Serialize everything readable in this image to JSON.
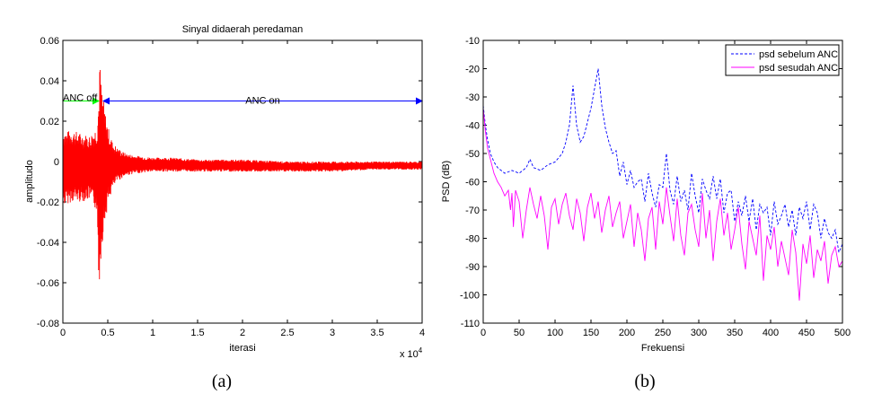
{
  "chart_data": [
    {
      "type": "line",
      "title": "Sinyal didaerah peredaman",
      "xlabel": "iterasi",
      "ylabel": "amplitudo",
      "x_multiplier": "x 10",
      "x_multiplier_exp": "4",
      "xlim": [
        0,
        4
      ],
      "ylim": [
        -0.08,
        0.06
      ],
      "xticks": [
        "0",
        "0.5",
        "1",
        "1.5",
        "2",
        "2.5",
        "3",
        "3.5",
        "4"
      ],
      "yticks": [
        "-0.08",
        "-0.06",
        "-0.04",
        "-0.02",
        "0",
        "0.02",
        "0.04",
        "0.06"
      ],
      "series_color": "#ff0000",
      "envelope": {
        "x": [
          0,
          0.05,
          0.1,
          0.2,
          0.3,
          0.38,
          0.4,
          0.41,
          0.42,
          0.44,
          0.47,
          0.5,
          0.55,
          0.6,
          0.7,
          0.8,
          1.0,
          1.2,
          1.5,
          2.0,
          2.5,
          3.0,
          3.5,
          4.0
        ],
        "upper": [
          0.016,
          0.015,
          0.016,
          0.014,
          0.013,
          0.018,
          0.035,
          0.053,
          0.042,
          0.035,
          0.025,
          0.018,
          0.01,
          0.007,
          0.004,
          0.003,
          0.002,
          0.002,
          0.001,
          0.001,
          0.0,
          0.0,
          0.0,
          0.0
        ],
        "lower": [
          -0.022,
          -0.021,
          -0.02,
          -0.02,
          -0.019,
          -0.025,
          -0.06,
          -0.061,
          -0.05,
          -0.04,
          -0.03,
          -0.022,
          -0.014,
          -0.01,
          -0.007,
          -0.006,
          -0.005,
          -0.005,
          -0.005,
          -0.005,
          -0.005,
          -0.005,
          -0.004,
          -0.004
        ]
      },
      "annotations": [
        {
          "text": "ANC off",
          "from_x": 0.0,
          "to_x": 0.4,
          "y": 0.03,
          "color": "#00ff00"
        },
        {
          "text": "ANC on",
          "from_x": 0.45,
          "to_x": 4.0,
          "y": 0.03,
          "color": "#0000ff"
        }
      ],
      "caption": "(a)"
    },
    {
      "type": "line",
      "xlabel": "Frekuensi",
      "ylabel": "PSD (dB)",
      "xlim": [
        0,
        500
      ],
      "ylim": [
        -110,
        -10
      ],
      "xticks": [
        "0",
        "50",
        "100",
        "150",
        "200",
        "250",
        "300",
        "350",
        "400",
        "450",
        "500"
      ],
      "yticks": [
        "-110",
        "-100",
        "-90",
        "-80",
        "-70",
        "-60",
        "-50",
        "-40",
        "-30",
        "-20",
        "-10"
      ],
      "legend_position": "top-right",
      "series": [
        {
          "name": "psd sebelum ANC",
          "color": "#0000ff",
          "style": "dashed",
          "x": [
            0,
            3,
            6,
            10,
            15,
            20,
            30,
            40,
            50,
            60,
            65,
            70,
            80,
            90,
            100,
            110,
            115,
            120,
            125,
            130,
            135,
            140,
            145,
            150,
            155,
            160,
            165,
            170,
            175,
            180,
            185,
            190,
            195,
            200,
            205,
            210,
            215,
            220,
            225,
            230,
            235,
            240,
            245,
            250,
            255,
            260,
            265,
            270,
            275,
            280,
            285,
            290,
            295,
            300,
            305,
            310,
            315,
            320,
            325,
            330,
            335,
            340,
            345,
            350,
            355,
            360,
            365,
            370,
            375,
            380,
            385,
            390,
            395,
            400,
            405,
            410,
            415,
            420,
            425,
            430,
            435,
            440,
            445,
            450,
            455,
            460,
            465,
            470,
            475,
            480,
            485,
            490,
            495,
            500
          ],
          "y": [
            -33,
            -40,
            -45,
            -50,
            -53,
            -55,
            -57,
            -56,
            -57,
            -55,
            -52,
            -55,
            -56,
            -54,
            -53,
            -50,
            -46,
            -40,
            -26,
            -40,
            -46,
            -44,
            -39,
            -34,
            -27,
            -20,
            -33,
            -41,
            -46,
            -50,
            -49,
            -58,
            -53,
            -61,
            -56,
            -62,
            -60,
            -59,
            -67,
            -57,
            -64,
            -69,
            -61,
            -62,
            -50,
            -63,
            -68,
            -58,
            -67,
            -63,
            -70,
            -57,
            -65,
            -71,
            -59,
            -63,
            -66,
            -58,
            -66,
            -59,
            -71,
            -64,
            -63,
            -74,
            -67,
            -72,
            -65,
            -74,
            -66,
            -77,
            -68,
            -71,
            -69,
            -79,
            -67,
            -75,
            -72,
            -68,
            -76,
            -70,
            -79,
            -69,
            -73,
            -67,
            -77,
            -68,
            -71,
            -80,
            -73,
            -78,
            -80,
            -77,
            -85,
            -82
          ]
        },
        {
          "name": "psd sesudah ANC",
          "color": "#ff00ff",
          "style": "solid",
          "x": [
            0,
            3,
            6,
            10,
            15,
            20,
            25,
            30,
            35,
            38,
            40,
            42,
            45,
            50,
            55,
            60,
            65,
            70,
            75,
            80,
            85,
            90,
            95,
            100,
            105,
            110,
            115,
            120,
            125,
            130,
            135,
            140,
            145,
            150,
            155,
            160,
            165,
            170,
            175,
            180,
            185,
            190,
            195,
            200,
            205,
            210,
            215,
            220,
            225,
            230,
            235,
            240,
            245,
            250,
            255,
            260,
            265,
            270,
            275,
            280,
            285,
            290,
            295,
            300,
            305,
            310,
            315,
            320,
            325,
            330,
            335,
            340,
            345,
            350,
            355,
            360,
            365,
            370,
            375,
            380,
            385,
            390,
            395,
            400,
            405,
            410,
            415,
            420,
            425,
            430,
            435,
            440,
            445,
            450,
            455,
            460,
            465,
            470,
            475,
            480,
            485,
            490,
            495,
            500
          ],
          "y": [
            -34,
            -42,
            -48,
            -52,
            -57,
            -60,
            -62,
            -65,
            -63,
            -70,
            -64,
            -76,
            -63,
            -67,
            -80,
            -70,
            -62,
            -68,
            -73,
            -65,
            -72,
            -84,
            -69,
            -66,
            -75,
            -68,
            -64,
            -72,
            -77,
            -66,
            -71,
            -81,
            -69,
            -64,
            -73,
            -67,
            -78,
            -70,
            -65,
            -76,
            -71,
            -67,
            -80,
            -74,
            -68,
            -83,
            -71,
            -77,
            -88,
            -73,
            -69,
            -84,
            -67,
            -75,
            -62,
            -72,
            -81,
            -66,
            -79,
            -86,
            -71,
            -68,
            -77,
            -83,
            -64,
            -80,
            -70,
            -88,
            -74,
            -66,
            -79,
            -71,
            -84,
            -77,
            -69,
            -82,
            -91,
            -74,
            -80,
            -86,
            -72,
            -95,
            -79,
            -84,
            -76,
            -90,
            -81,
            -87,
            -93,
            -77,
            -85,
            -102,
            -82,
            -89,
            -79,
            -94,
            -84,
            -88,
            -81,
            -96,
            -86,
            -83,
            -90,
            -88
          ]
        }
      ],
      "caption": "(b)"
    }
  ]
}
